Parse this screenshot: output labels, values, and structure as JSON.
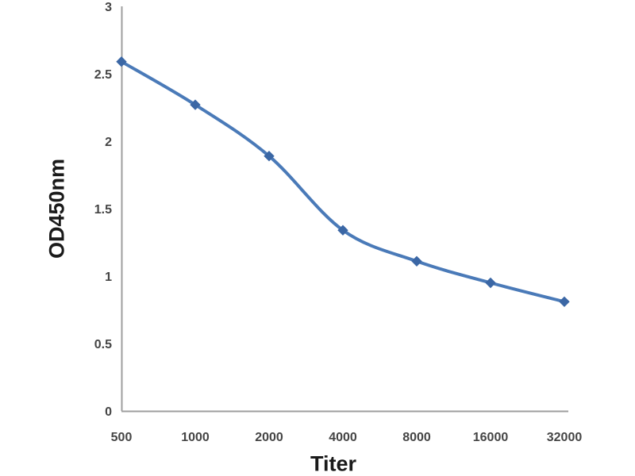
{
  "chart_data": {
    "type": "line",
    "smooth": true,
    "categories": [
      "500",
      "1000",
      "2000",
      "4000",
      "8000",
      "16000",
      "32000"
    ],
    "series": [
      {
        "name": "OD450nm",
        "values": [
          2.59,
          2.27,
          1.89,
          1.34,
          1.11,
          0.95,
          0.81
        ],
        "line_color": "#4a7ab8",
        "marker": "diamond",
        "marker_color": "#3b67a5"
      }
    ],
    "title": "",
    "xlabel": "Titer",
    "ylabel": "OD450nm",
    "ylim": [
      0,
      3
    ],
    "yticks": [
      0,
      0.5,
      1,
      1.5,
      2,
      2.5,
      3
    ],
    "grid": false,
    "legend": "none",
    "axis_color": "#9e9e9e",
    "tick_label_color": "#454545"
  },
  "layout_colors": {
    "background": "#ffffff"
  }
}
